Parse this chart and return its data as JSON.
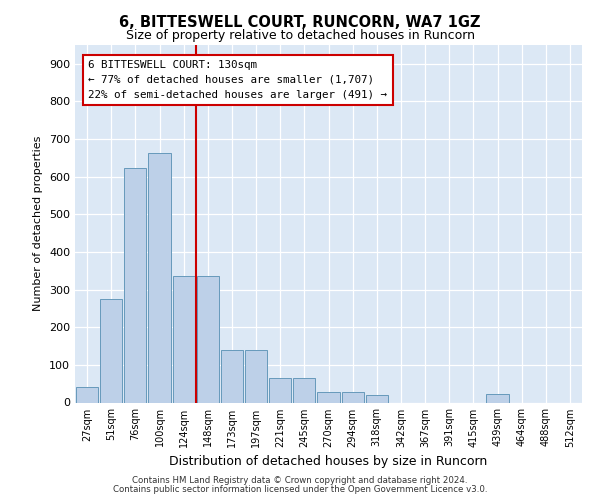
{
  "title1": "6, BITTESWELL COURT, RUNCORN, WA7 1GZ",
  "title2": "Size of property relative to detached houses in Runcorn",
  "xlabel": "Distribution of detached houses by size in Runcorn",
  "ylabel": "Number of detached properties",
  "categories": [
    "27sqm",
    "51sqm",
    "76sqm",
    "100sqm",
    "124sqm",
    "148sqm",
    "173sqm",
    "197sqm",
    "221sqm",
    "245sqm",
    "270sqm",
    "294sqm",
    "318sqm",
    "342sqm",
    "367sqm",
    "391sqm",
    "415sqm",
    "439sqm",
    "464sqm",
    "488sqm",
    "512sqm"
  ],
  "values": [
    42,
    275,
    622,
    663,
    335,
    335,
    140,
    140,
    65,
    65,
    27,
    27,
    20,
    0,
    0,
    0,
    0,
    22,
    0,
    0,
    0
  ],
  "bar_color": "#bdd0e8",
  "bar_edge_color": "#6699bb",
  "vline_idx": 4,
  "vline_color": "#cc0000",
  "annotation_line1": "6 BITTESWELL COURT: 130sqm",
  "annotation_line2": "← 77% of detached houses are smaller (1,707)",
  "annotation_line3": "22% of semi-detached houses are larger (491) →",
  "annotation_box_facecolor": "#ffffff",
  "annotation_box_edgecolor": "#cc0000",
  "ylim": [
    0,
    950
  ],
  "yticks": [
    0,
    100,
    200,
    300,
    400,
    500,
    600,
    700,
    800,
    900
  ],
  "bg_color": "#dce8f5",
  "fig_bg": "#ffffff",
  "footer1": "Contains HM Land Registry data © Crown copyright and database right 2024.",
  "footer2": "Contains public sector information licensed under the Open Government Licence v3.0."
}
